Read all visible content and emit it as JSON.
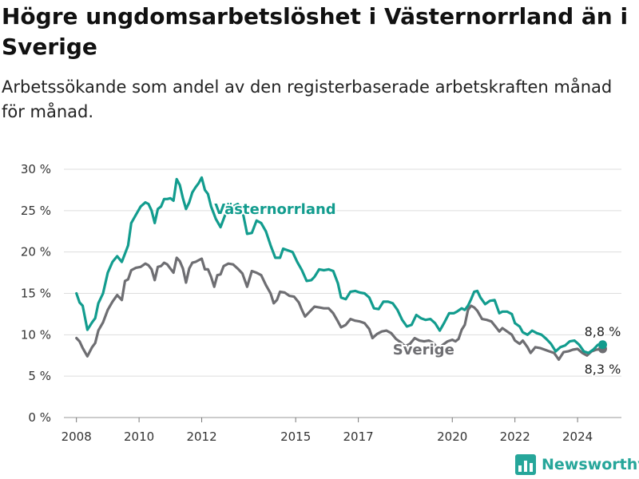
{
  "title": "Högre ungdomsarbetslöshet i Västernorrland än i Sverige",
  "subtitle": "Arbetssökande som andel av den registerbaserade arbetskraften månad för månad.",
  "brand": {
    "name": "Newsworthy",
    "color": "#26a69a"
  },
  "colors": {
    "vasternorrland": "#129c8e",
    "sverige": "#6e6e72",
    "grid": "#dddddd"
  },
  "chart_data": {
    "type": "line",
    "x_axis": {
      "unit": "year",
      "min": 2007.6,
      "max": 2025.4,
      "ticks": [
        2008,
        2010,
        2012,
        2015,
        2017,
        2020,
        2022,
        2024
      ]
    },
    "y_axis": {
      "unit": "percent",
      "min": 0,
      "max": 30,
      "ticks": [
        0,
        5,
        10,
        15,
        20,
        25,
        30
      ],
      "tick_labels": [
        "0 %",
        "5 %",
        "10 %",
        "15 %",
        "20 %",
        "25 %",
        "30 %"
      ]
    },
    "grid": true,
    "series": [
      {
        "name": "Västernorrland",
        "end_label": "8,8 %",
        "points": [
          [
            2008.0,
            15.0
          ],
          [
            2008.1,
            13.9
          ],
          [
            2008.2,
            13.5
          ],
          [
            2008.35,
            10.6
          ],
          [
            2008.5,
            11.5
          ],
          [
            2008.6,
            12.0
          ],
          [
            2008.7,
            13.8
          ],
          [
            2008.85,
            15.0
          ],
          [
            2009.0,
            17.5
          ],
          [
            2009.15,
            18.8
          ],
          [
            2009.3,
            19.5
          ],
          [
            2009.45,
            18.8
          ],
          [
            2009.55,
            19.8
          ],
          [
            2009.65,
            20.8
          ],
          [
            2009.75,
            23.5
          ],
          [
            2009.9,
            24.5
          ],
          [
            2010.05,
            25.5
          ],
          [
            2010.2,
            26.0
          ],
          [
            2010.3,
            25.8
          ],
          [
            2010.4,
            25.0
          ],
          [
            2010.5,
            23.5
          ],
          [
            2010.6,
            25.2
          ],
          [
            2010.7,
            25.5
          ],
          [
            2010.8,
            26.4
          ],
          [
            2010.9,
            26.4
          ],
          [
            2011.0,
            26.5
          ],
          [
            2011.1,
            26.2
          ],
          [
            2011.2,
            28.8
          ],
          [
            2011.3,
            28.1
          ],
          [
            2011.4,
            26.5
          ],
          [
            2011.5,
            25.2
          ],
          [
            2011.6,
            26.0
          ],
          [
            2011.7,
            27.2
          ],
          [
            2011.8,
            27.8
          ],
          [
            2011.9,
            28.3
          ],
          [
            2012.0,
            29.0
          ],
          [
            2012.1,
            27.5
          ],
          [
            2012.2,
            27.0
          ],
          [
            2012.3,
            25.5
          ],
          [
            2012.45,
            24.0
          ],
          [
            2012.6,
            23.0
          ],
          [
            2012.8,
            25.0
          ],
          [
            2013.0,
            25.5
          ],
          [
            2013.15,
            25.8
          ],
          [
            2013.3,
            25.0
          ],
          [
            2013.45,
            22.2
          ],
          [
            2013.6,
            22.3
          ],
          [
            2013.75,
            23.8
          ],
          [
            2013.9,
            23.5
          ],
          [
            2014.05,
            22.5
          ],
          [
            2014.2,
            20.8
          ],
          [
            2014.35,
            19.3
          ],
          [
            2014.5,
            19.3
          ],
          [
            2014.6,
            20.4
          ],
          [
            2014.75,
            20.2
          ],
          [
            2014.9,
            20.0
          ],
          [
            2015.05,
            18.8
          ],
          [
            2015.2,
            17.8
          ],
          [
            2015.35,
            16.5
          ],
          [
            2015.5,
            16.6
          ],
          [
            2015.6,
            17.0
          ],
          [
            2015.75,
            17.9
          ],
          [
            2015.9,
            17.8
          ],
          [
            2016.05,
            17.9
          ],
          [
            2016.2,
            17.7
          ],
          [
            2016.35,
            16.2
          ],
          [
            2016.45,
            14.5
          ],
          [
            2016.6,
            14.3
          ],
          [
            2016.75,
            15.2
          ],
          [
            2016.9,
            15.3
          ],
          [
            2017.05,
            15.1
          ],
          [
            2017.2,
            15.0
          ],
          [
            2017.35,
            14.5
          ],
          [
            2017.5,
            13.2
          ],
          [
            2017.65,
            13.1
          ],
          [
            2017.8,
            14.0
          ],
          [
            2017.95,
            14.0
          ],
          [
            2018.1,
            13.8
          ],
          [
            2018.25,
            13.0
          ],
          [
            2018.4,
            11.8
          ],
          [
            2018.55,
            11.0
          ],
          [
            2018.7,
            11.2
          ],
          [
            2018.85,
            12.4
          ],
          [
            2019.0,
            12.0
          ],
          [
            2019.15,
            11.8
          ],
          [
            2019.3,
            11.9
          ],
          [
            2019.45,
            11.4
          ],
          [
            2019.6,
            10.5
          ],
          [
            2019.75,
            11.5
          ],
          [
            2019.9,
            12.6
          ],
          [
            2020.05,
            12.6
          ],
          [
            2020.15,
            12.8
          ],
          [
            2020.3,
            13.2
          ],
          [
            2020.4,
            13.0
          ],
          [
            2020.5,
            13.5
          ],
          [
            2020.6,
            14.3
          ],
          [
            2020.7,
            15.2
          ],
          [
            2020.8,
            15.3
          ],
          [
            2020.9,
            14.5
          ],
          [
            2021.05,
            13.7
          ],
          [
            2021.2,
            14.1
          ],
          [
            2021.35,
            14.2
          ],
          [
            2021.5,
            12.6
          ],
          [
            2021.6,
            12.8
          ],
          [
            2021.75,
            12.8
          ],
          [
            2021.9,
            12.5
          ],
          [
            2022.0,
            11.4
          ],
          [
            2022.15,
            11.0
          ],
          [
            2022.25,
            10.3
          ],
          [
            2022.4,
            10.0
          ],
          [
            2022.55,
            10.5
          ],
          [
            2022.7,
            10.2
          ],
          [
            2022.85,
            10.0
          ],
          [
            2023.0,
            9.5
          ],
          [
            2023.15,
            8.9
          ],
          [
            2023.3,
            8.0
          ],
          [
            2023.45,
            8.5
          ],
          [
            2023.6,
            8.7
          ],
          [
            2023.75,
            9.2
          ],
          [
            2023.9,
            9.3
          ],
          [
            2024.05,
            8.8
          ],
          [
            2024.2,
            8.0
          ],
          [
            2024.35,
            7.8
          ],
          [
            2024.5,
            8.2
          ],
          [
            2024.65,
            8.8
          ],
          [
            2024.8,
            8.8
          ]
        ]
      },
      {
        "name": "Sverige",
        "end_label": "8,3 %",
        "points": [
          [
            2008.0,
            9.6
          ],
          [
            2008.1,
            9.2
          ],
          [
            2008.2,
            8.4
          ],
          [
            2008.35,
            7.4
          ],
          [
            2008.5,
            8.5
          ],
          [
            2008.6,
            9.0
          ],
          [
            2008.7,
            10.5
          ],
          [
            2008.85,
            11.5
          ],
          [
            2009.0,
            13.0
          ],
          [
            2009.15,
            14.0
          ],
          [
            2009.3,
            14.8
          ],
          [
            2009.45,
            14.2
          ],
          [
            2009.55,
            16.5
          ],
          [
            2009.65,
            16.7
          ],
          [
            2009.75,
            17.8
          ],
          [
            2009.9,
            18.1
          ],
          [
            2010.05,
            18.2
          ],
          [
            2010.2,
            18.6
          ],
          [
            2010.3,
            18.4
          ],
          [
            2010.4,
            17.9
          ],
          [
            2010.5,
            16.6
          ],
          [
            2010.6,
            18.2
          ],
          [
            2010.7,
            18.3
          ],
          [
            2010.8,
            18.7
          ],
          [
            2010.9,
            18.5
          ],
          [
            2011.0,
            18.0
          ],
          [
            2011.1,
            17.5
          ],
          [
            2011.2,
            19.3
          ],
          [
            2011.3,
            18.9
          ],
          [
            2011.4,
            18.0
          ],
          [
            2011.5,
            16.3
          ],
          [
            2011.6,
            18.0
          ],
          [
            2011.7,
            18.7
          ],
          [
            2011.8,
            18.8
          ],
          [
            2011.9,
            19.0
          ],
          [
            2012.0,
            19.2
          ],
          [
            2012.1,
            17.9
          ],
          [
            2012.2,
            17.9
          ],
          [
            2012.3,
            17.0
          ],
          [
            2012.4,
            15.8
          ],
          [
            2012.5,
            17.2
          ],
          [
            2012.6,
            17.3
          ],
          [
            2012.7,
            18.3
          ],
          [
            2012.85,
            18.6
          ],
          [
            2013.0,
            18.5
          ],
          [
            2013.15,
            18.0
          ],
          [
            2013.3,
            17.4
          ],
          [
            2013.45,
            15.8
          ],
          [
            2013.6,
            17.7
          ],
          [
            2013.75,
            17.5
          ],
          [
            2013.9,
            17.2
          ],
          [
            2014.05,
            16.0
          ],
          [
            2014.2,
            15.0
          ],
          [
            2014.3,
            13.8
          ],
          [
            2014.4,
            14.2
          ],
          [
            2014.5,
            15.2
          ],
          [
            2014.65,
            15.1
          ],
          [
            2014.8,
            14.7
          ],
          [
            2014.95,
            14.6
          ],
          [
            2015.1,
            13.9
          ],
          [
            2015.2,
            13.0
          ],
          [
            2015.3,
            12.2
          ],
          [
            2015.45,
            12.8
          ],
          [
            2015.6,
            13.4
          ],
          [
            2015.75,
            13.3
          ],
          [
            2015.9,
            13.2
          ],
          [
            2016.05,
            13.2
          ],
          [
            2016.2,
            12.6
          ],
          [
            2016.35,
            11.6
          ],
          [
            2016.45,
            10.9
          ],
          [
            2016.6,
            11.2
          ],
          [
            2016.75,
            11.9
          ],
          [
            2016.9,
            11.7
          ],
          [
            2017.05,
            11.6
          ],
          [
            2017.2,
            11.4
          ],
          [
            2017.35,
            10.7
          ],
          [
            2017.45,
            9.6
          ],
          [
            2017.6,
            10.1
          ],
          [
            2017.75,
            10.4
          ],
          [
            2017.9,
            10.5
          ],
          [
            2018.05,
            10.2
          ],
          [
            2018.2,
            9.5
          ],
          [
            2018.35,
            9.1
          ],
          [
            2018.5,
            8.6
          ],
          [
            2018.65,
            8.9
          ],
          [
            2018.8,
            9.6
          ],
          [
            2018.95,
            9.3
          ],
          [
            2019.1,
            9.2
          ],
          [
            2019.25,
            9.3
          ],
          [
            2019.4,
            9.0
          ],
          [
            2019.55,
            8.3
          ],
          [
            2019.7,
            8.8
          ],
          [
            2019.85,
            9.2
          ],
          [
            2020.0,
            9.4
          ],
          [
            2020.1,
            9.2
          ],
          [
            2020.2,
            9.5
          ],
          [
            2020.3,
            10.6
          ],
          [
            2020.4,
            11.2
          ],
          [
            2020.5,
            13.0
          ],
          [
            2020.6,
            13.5
          ],
          [
            2020.7,
            13.3
          ],
          [
            2020.8,
            12.9
          ],
          [
            2020.95,
            11.9
          ],
          [
            2021.1,
            11.8
          ],
          [
            2021.25,
            11.6
          ],
          [
            2021.4,
            10.9
          ],
          [
            2021.5,
            10.4
          ],
          [
            2021.6,
            10.8
          ],
          [
            2021.75,
            10.4
          ],
          [
            2021.9,
            10.0
          ],
          [
            2022.0,
            9.3
          ],
          [
            2022.15,
            8.9
          ],
          [
            2022.25,
            9.3
          ],
          [
            2022.4,
            8.5
          ],
          [
            2022.5,
            7.8
          ],
          [
            2022.65,
            8.5
          ],
          [
            2022.8,
            8.4
          ],
          [
            2022.95,
            8.2
          ],
          [
            2023.1,
            8.0
          ],
          [
            2023.25,
            7.8
          ],
          [
            2023.4,
            7.0
          ],
          [
            2023.55,
            7.9
          ],
          [
            2023.7,
            8.0
          ],
          [
            2023.85,
            8.2
          ],
          [
            2024.0,
            8.3
          ],
          [
            2024.15,
            7.8
          ],
          [
            2024.3,
            7.5
          ],
          [
            2024.45,
            8.0
          ],
          [
            2024.6,
            8.2
          ],
          [
            2024.8,
            8.3
          ]
        ]
      }
    ]
  }
}
